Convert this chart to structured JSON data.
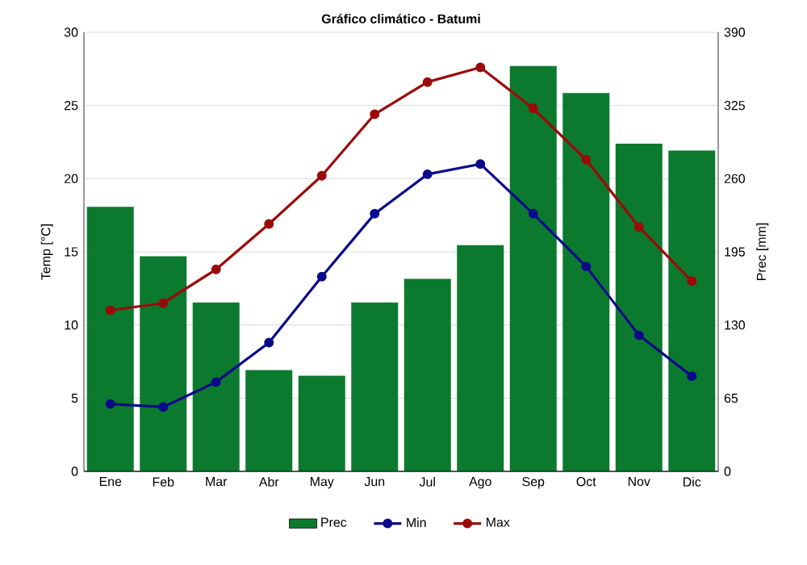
{
  "chart_data": {
    "type": "line",
    "title": "Gráfico climático - Batumi",
    "ylabel": "Temp [°C]",
    "y2label": "Prec [mm]",
    "categories": [
      "Ene",
      "Feb",
      "Mar",
      "Abr",
      "May",
      "Jun",
      "Jul",
      "Ago",
      "Sep",
      "Oct",
      "Nov",
      "Dic"
    ],
    "series": [
      {
        "name": "Prec",
        "type": "bar",
        "axis": "y2",
        "color": "#0b7a2e",
        "values": [
          235,
          191,
          150,
          90,
          85,
          150,
          171,
          201,
          360,
          336,
          291,
          285
        ]
      },
      {
        "name": "Min",
        "color": "#0a0a8c",
        "values": [
          4.6,
          4.4,
          6.1,
          8.8,
          13.3,
          17.6,
          20.3,
          21.0,
          17.6,
          14.0,
          9.3,
          6.5
        ]
      },
      {
        "name": "Max",
        "color": "#9b0a0a",
        "values": [
          11.0,
          11.5,
          13.8,
          16.9,
          20.2,
          24.4,
          26.6,
          27.6,
          24.8,
          21.3,
          16.7,
          13.0
        ]
      }
    ],
    "ylim": [
      0,
      30
    ],
    "yticks": [
      0,
      5,
      10,
      15,
      20,
      25,
      30
    ],
    "y2lim": [
      0,
      390
    ],
    "y2ticks": [
      0,
      65,
      130,
      195,
      260,
      325,
      390
    ],
    "grid": "y",
    "legend": "bottom",
    "marker": "circle",
    "line_style": "solid"
  }
}
